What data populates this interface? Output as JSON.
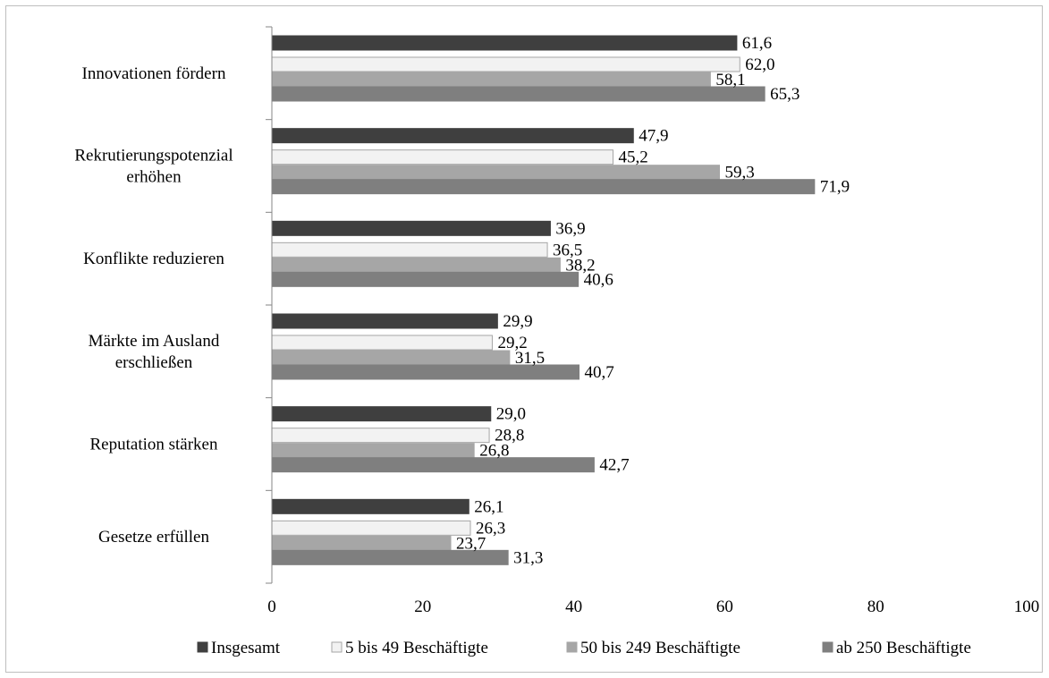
{
  "chart_data": {
    "type": "bar",
    "orientation": "horizontal",
    "categories": [
      [
        "Innovationen fördern"
      ],
      [
        "Rekrutierungspotenzial",
        "erhöhen"
      ],
      [
        "Konflikte reduzieren"
      ],
      [
        "Märkte im Ausland",
        "erschließen"
      ],
      [
        "Reputation stärken"
      ],
      [
        "Gesetze erfüllen"
      ]
    ],
    "series": [
      {
        "name": "Insgesamt",
        "color": "#3f3f3f",
        "stroke": "#3f3f3f",
        "values": [
          61.6,
          47.9,
          36.9,
          29.9,
          29.0,
          26.1
        ],
        "labels": [
          "61,6",
          "47,9",
          "36,9",
          "29,9",
          "29,0",
          "26,1"
        ]
      },
      {
        "name": "5 bis 49 Beschäftigte",
        "color": "#f2f2f2",
        "stroke": "#a6a6a6",
        "values": [
          62.0,
          45.2,
          36.5,
          29.2,
          28.8,
          26.3
        ],
        "labels": [
          "62,0",
          "45,2",
          "36,5",
          "29,2",
          "28,8",
          "26,3"
        ]
      },
      {
        "name": "50 bis 249 Beschäftigte",
        "color": "#a6a6a6",
        "stroke": "#a6a6a6",
        "values": [
          58.1,
          59.3,
          38.2,
          31.5,
          26.8,
          23.7
        ],
        "labels": [
          "58,1",
          "59,3",
          "38,2",
          "31,5",
          "26,8",
          "23,7"
        ]
      },
      {
        "name": "ab 250 Beschäftigte",
        "color": "#7f7f7f",
        "stroke": "#7f7f7f",
        "values": [
          65.3,
          71.9,
          40.6,
          40.7,
          42.7,
          31.3
        ],
        "labels": [
          "65,3",
          "71,9",
          "40,6",
          "40,7",
          "42,7",
          "31,3"
        ]
      }
    ],
    "xlim": [
      0,
      100
    ],
    "xticks": [
      "0",
      "20",
      "40",
      "60",
      "80",
      "100"
    ],
    "legend_position": "bottom",
    "grid": false
  }
}
